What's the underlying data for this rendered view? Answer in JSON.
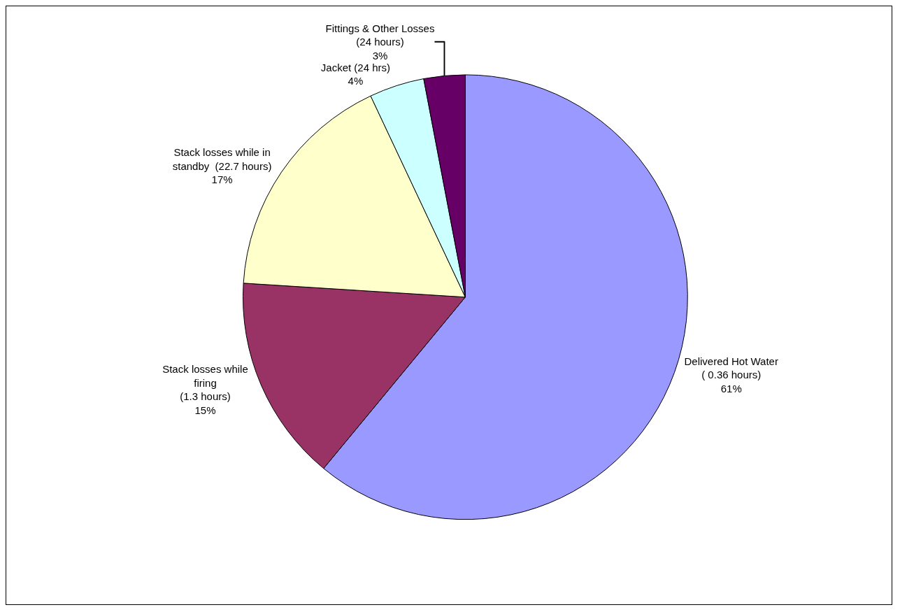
{
  "chart_data": {
    "type": "pie",
    "categories": [
      "Delivered Hot Water\n( 0.36 hours)",
      "Stack losses while\nfiring\n(1.3 hours)",
      "Stack losses while in\nstandby  (22.7 hours)",
      "Jacket (24 hrs)",
      "Fittings & Other Losses\n(24 hours)"
    ],
    "values": [
      61,
      15,
      17,
      4,
      3
    ],
    "value_labels": [
      "61%",
      "15%",
      "17%",
      "4%",
      "3%"
    ],
    "colors": [
      "#9999ff",
      "#993366",
      "#ffffcc",
      "#ccffff",
      "#660066"
    ],
    "legend": false
  }
}
